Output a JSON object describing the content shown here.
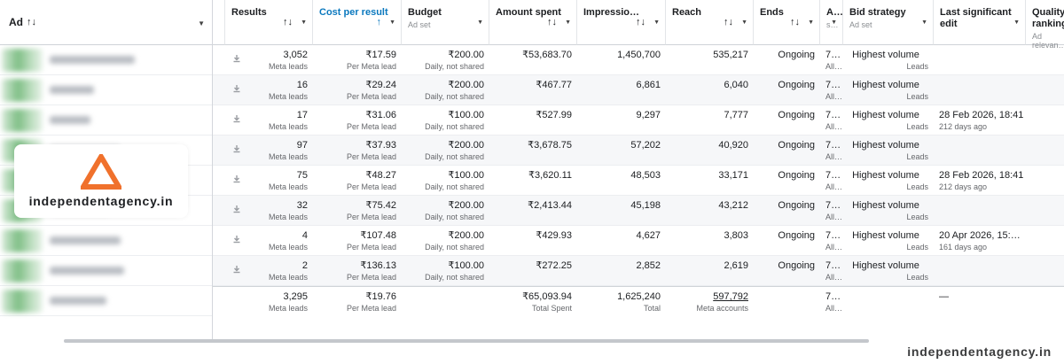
{
  "ad_column": {
    "label": "Ad",
    "sort_icon": "sort-updown-icon"
  },
  "watermark": {
    "text": "independentagency.in",
    "accent": "#f0712c"
  },
  "footer_watermark": "independentagency.in",
  "columns": [
    {
      "key": "results",
      "label": "Results",
      "sub": "",
      "sort": "↑↓"
    },
    {
      "key": "cpr",
      "label": "Cost per result",
      "sub": "",
      "sort": "↑",
      "active": true
    },
    {
      "key": "budget",
      "label": "Budget",
      "sub": "Ad set",
      "sort": ""
    },
    {
      "key": "amount",
      "label": "Amount spent",
      "sub": "",
      "sort": "↑↓"
    },
    {
      "key": "impr",
      "label": "Impressio…",
      "sub": "",
      "sort": "↑↓"
    },
    {
      "key": "reach",
      "label": "Reach",
      "sub": "",
      "sort": "↑↓"
    },
    {
      "key": "ends",
      "label": "Ends",
      "sub": "",
      "sort": "↑↓"
    },
    {
      "key": "attr",
      "label": "A…",
      "sub": "s…",
      "sort": ""
    },
    {
      "key": "bid",
      "label": "Bid strategy",
      "sub": "Ad set",
      "sort": ""
    },
    {
      "key": "lse",
      "label": "Last significant edit",
      "sub": "",
      "sort": ""
    },
    {
      "key": "quality",
      "label": "Quality ranking",
      "sub": "Ad relevan…",
      "sort": ""
    }
  ],
  "rows": [
    {
      "results": "3,052",
      "results_sub": "Meta leads",
      "cpr": "₹17.59",
      "cpr_sub": "Per Meta lead",
      "budget": "₹200.00",
      "budget_sub": "Daily, not shared",
      "amount": "₹53,683.70",
      "impr": "1,450,700",
      "reach": "535,217",
      "ends": "Ongoing",
      "attr": "7…",
      "attr_sub": "All…",
      "bid": "Highest volume",
      "bid_sub": "Leads",
      "lse": "",
      "lse_sub": ""
    },
    {
      "results": "16",
      "results_sub": "Meta leads",
      "cpr": "₹29.24",
      "cpr_sub": "Per Meta lead",
      "budget": "₹200.00",
      "budget_sub": "Daily, not shared",
      "amount": "₹467.77",
      "impr": "6,861",
      "reach": "6,040",
      "ends": "Ongoing",
      "attr": "7…",
      "attr_sub": "All…",
      "bid": "Highest volume",
      "bid_sub": "Leads",
      "lse": "",
      "lse_sub": ""
    },
    {
      "results": "17",
      "results_sub": "Meta leads",
      "cpr": "₹31.06",
      "cpr_sub": "Per Meta lead",
      "budget": "₹100.00",
      "budget_sub": "Daily, not shared",
      "amount": "₹527.99",
      "impr": "9,297",
      "reach": "7,777",
      "ends": "Ongoing",
      "attr": "7…",
      "attr_sub": "All…",
      "bid": "Highest volume",
      "bid_sub": "Leads",
      "lse": "28 Feb 2026, 18:41",
      "lse_sub": "212 days ago"
    },
    {
      "results": "97",
      "results_sub": "Meta leads",
      "cpr": "₹37.93",
      "cpr_sub": "Per Meta lead",
      "budget": "₹200.00",
      "budget_sub": "Daily, not shared",
      "amount": "₹3,678.75",
      "impr": "57,202",
      "reach": "40,920",
      "ends": "Ongoing",
      "attr": "7…",
      "attr_sub": "All…",
      "bid": "Highest volume",
      "bid_sub": "Leads",
      "lse": "",
      "lse_sub": ""
    },
    {
      "results": "75",
      "results_sub": "Meta leads",
      "cpr": "₹48.27",
      "cpr_sub": "Per Meta lead",
      "budget": "₹100.00",
      "budget_sub": "Daily, not shared",
      "amount": "₹3,620.11",
      "impr": "48,503",
      "reach": "33,171",
      "ends": "Ongoing",
      "attr": "7…",
      "attr_sub": "All…",
      "bid": "Highest volume",
      "bid_sub": "Leads",
      "lse": "28 Feb 2026, 18:41",
      "lse_sub": "212 days ago"
    },
    {
      "results": "32",
      "results_sub": "Meta leads",
      "cpr": "₹75.42",
      "cpr_sub": "Per Meta lead",
      "budget": "₹200.00",
      "budget_sub": "Daily, not shared",
      "amount": "₹2,413.44",
      "impr": "45,198",
      "reach": "43,212",
      "ends": "Ongoing",
      "attr": "7…",
      "attr_sub": "All…",
      "bid": "Highest volume",
      "bid_sub": "Leads",
      "lse": "",
      "lse_sub": ""
    },
    {
      "results": "4",
      "results_sub": "Meta leads",
      "cpr": "₹107.48",
      "cpr_sub": "Per Meta lead",
      "budget": "₹200.00",
      "budget_sub": "Daily, not shared",
      "amount": "₹429.93",
      "impr": "4,627",
      "reach": "3,803",
      "ends": "Ongoing",
      "attr": "7…",
      "attr_sub": "All…",
      "bid": "Highest volume",
      "bid_sub": "Leads",
      "lse": "20 Apr 2026, 15:…",
      "lse_sub": "161 days ago"
    },
    {
      "results": "2",
      "results_sub": "Meta leads",
      "cpr": "₹136.13",
      "cpr_sub": "Per Meta lead",
      "budget": "₹100.00",
      "budget_sub": "Daily, not shared",
      "amount": "₹272.25",
      "impr": "2,852",
      "reach": "2,619",
      "ends": "Ongoing",
      "attr": "7…",
      "attr_sub": "All…",
      "bid": "Highest volume",
      "bid_sub": "Leads",
      "lse": "",
      "lse_sub": ""
    }
  ],
  "totals": {
    "results": "3,295",
    "results_sub": "Meta leads",
    "cpr": "₹19.76",
    "cpr_sub": "Per Meta lead",
    "amount": "₹65,093.94",
    "amount_sub": "Total Spent",
    "impr": "1,625,240",
    "impr_sub": "Total",
    "reach": "597,792",
    "reach_sub": "Meta accounts",
    "attr": "7…",
    "attr_sub": "All…",
    "lse": "—"
  }
}
